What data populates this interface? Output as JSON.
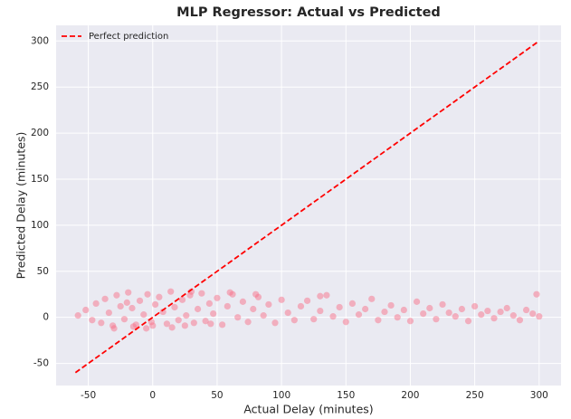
{
  "chart_data": {
    "type": "scatter",
    "title": "MLP Regressor: Actual vs Predicted",
    "xlabel": "Actual Delay (minutes)",
    "ylabel": "Predicted Delay (minutes)",
    "xlim": [
      -75,
      317
    ],
    "ylim": [
      -74,
      317
    ],
    "xticks": [
      -50,
      0,
      50,
      100,
      150,
      200,
      250,
      300
    ],
    "yticks": [
      -50,
      0,
      50,
      100,
      150,
      200,
      250,
      300
    ],
    "grid": true,
    "legend": "upper left",
    "points": {
      "color": "#f77189",
      "x": [
        -58,
        -52,
        -47,
        -44,
        -40,
        -37,
        -34,
        -31,
        -28,
        -25,
        -22,
        -19,
        -16,
        -13,
        -10,
        -7,
        -4,
        -1,
        2,
        5,
        8,
        11,
        14,
        17,
        20,
        23,
        26,
        29,
        32,
        35,
        38,
        41,
        44,
        47,
        50,
        54,
        58,
        62,
        66,
        70,
        74,
        78,
        82,
        86,
        90,
        95,
        100,
        105,
        110,
        115,
        120,
        125,
        130,
        135,
        140,
        145,
        150,
        155,
        160,
        165,
        170,
        175,
        180,
        185,
        190,
        195,
        200,
        205,
        210,
        215,
        220,
        225,
        230,
        235,
        240,
        245,
        250,
        255,
        260,
        265,
        270,
        275,
        280,
        285,
        290,
        295,
        300,
        -30,
        -15,
        0,
        15,
        25,
        45,
        60,
        -5,
        -20,
        30,
        80,
        130,
        298
      ],
      "values": [
        2,
        8,
        -3,
        15,
        -6,
        20,
        5,
        -9,
        24,
        12,
        -2,
        27,
        10,
        -8,
        18,
        3,
        25,
        -5,
        14,
        22,
        6,
        -7,
        28,
        11,
        -3,
        19,
        2,
        24,
        -6,
        9,
        26,
        -4,
        15,
        4,
        21,
        -8,
        12,
        25,
        0,
        17,
        -5,
        9,
        22,
        2,
        14,
        -6,
        19,
        5,
        -3,
        12,
        18,
        -2,
        7,
        24,
        1,
        11,
        -5,
        15,
        3,
        9,
        20,
        -3,
        6,
        13,
        0,
        8,
        -4,
        17,
        4,
        10,
        -2,
        14,
        5,
        1,
        9,
        -4,
        12,
        3,
        7,
        -1,
        6,
        10,
        2,
        -3,
        8,
        4,
        1,
        -12,
        -10,
        -9,
        -11,
        -9,
        -7,
        27,
        -12,
        16,
        28,
        25,
        23,
        25
      ]
    },
    "line": {
      "name": "Perfect prediction",
      "color": "#ff0000",
      "dashed": true,
      "x": [
        -60,
        300
      ],
      "values": [
        -60,
        300
      ]
    }
  }
}
